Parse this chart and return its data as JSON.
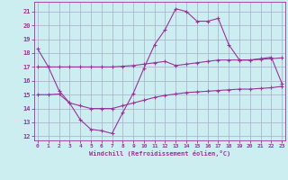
{
  "xlabel": "Windchill (Refroidissement éolien,°C)",
  "bg_color": "#cceef0",
  "grid_color": "#aaaacc",
  "line_color": "#993399",
  "x_hours": [
    0,
    1,
    2,
    3,
    4,
    5,
    6,
    7,
    8,
    9,
    10,
    11,
    12,
    13,
    14,
    15,
    16,
    17,
    18,
    19,
    20,
    21,
    22,
    23
  ],
  "line1_y": [
    18.3,
    17.0,
    15.3,
    14.4,
    13.2,
    12.5,
    12.4,
    12.2,
    13.7,
    15.1,
    16.9,
    18.6,
    19.7,
    21.2,
    21.0,
    20.3,
    20.3,
    20.5,
    18.6,
    17.5,
    17.5,
    17.6,
    17.7,
    15.8
  ],
  "line2_y": [
    17.0,
    17.0,
    17.0,
    17.0,
    17.0,
    17.0,
    17.0,
    17.0,
    17.05,
    17.1,
    17.2,
    17.3,
    17.4,
    17.1,
    17.2,
    17.3,
    17.4,
    17.5,
    17.5,
    17.5,
    17.5,
    17.55,
    17.6,
    17.65
  ],
  "line3_y": [
    15.0,
    15.0,
    15.05,
    14.4,
    14.2,
    14.0,
    14.0,
    14.0,
    14.2,
    14.4,
    14.6,
    14.8,
    14.95,
    15.05,
    15.15,
    15.2,
    15.25,
    15.3,
    15.35,
    15.4,
    15.4,
    15.45,
    15.5,
    15.6
  ],
  "yticks": [
    12,
    13,
    14,
    15,
    16,
    17,
    18,
    19,
    20,
    21
  ],
  "xticks": [
    0,
    1,
    2,
    3,
    4,
    5,
    6,
    7,
    8,
    9,
    10,
    11,
    12,
    13,
    14,
    15,
    16,
    17,
    18,
    19,
    20,
    21,
    22,
    23
  ],
  "xlim": [
    -0.3,
    23.3
  ],
  "ylim": [
    11.7,
    21.7
  ]
}
